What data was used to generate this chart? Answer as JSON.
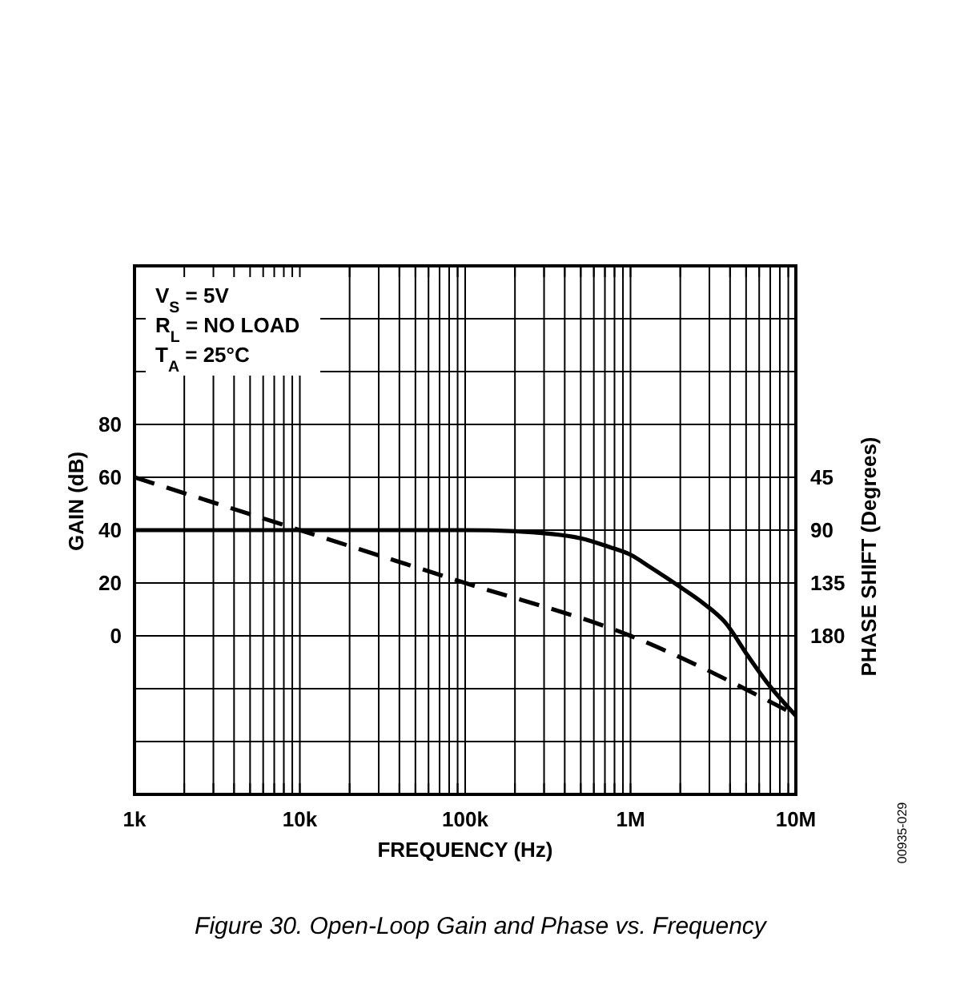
{
  "chart_data": {
    "type": "line",
    "title": "Figure 30. Open-Loop Gain and Phase vs. Frequency",
    "xlabel": "FREQUENCY (Hz)",
    "ylabel": "GAIN (dB)",
    "y2label": "PHASE SHIFT (Degrees)",
    "annotations": [
      "V$_{S}$ = 5V",
      "R$_{L}$ = NO LOAD",
      "T$_{A}$ = 25°C",
      "00935-029"
    ],
    "log": "x",
    "grid": true,
    "xlim": [
      1000,
      10000000
    ],
    "xticks": [
      {
        "value": 1000,
        "label": "1k"
      },
      {
        "value": 2000,
        "label": null
      },
      {
        "value": 3000,
        "label": null
      },
      {
        "value": 4000,
        "label": null
      },
      {
        "value": 5000,
        "label": null
      },
      {
        "value": 6000,
        "label": null
      },
      {
        "value": 7000,
        "label": null
      },
      {
        "value": 8000,
        "label": null
      },
      {
        "value": 9000,
        "label": null
      },
      {
        "value": 10000,
        "label": "10k"
      },
      {
        "value": 20000,
        "label": null
      },
      {
        "value": 30000,
        "label": null
      },
      {
        "value": 40000,
        "label": null
      },
      {
        "value": 50000,
        "label": null
      },
      {
        "value": 60000,
        "label": null
      },
      {
        "value": 70000,
        "label": null
      },
      {
        "value": 80000,
        "label": null
      },
      {
        "value": 90000,
        "label": null
      },
      {
        "value": 100000,
        "label": "100k"
      },
      {
        "value": 200000,
        "label": null
      },
      {
        "value": 300000,
        "label": null
      },
      {
        "value": 400000,
        "label": null
      },
      {
        "value": 500000,
        "label": null
      },
      {
        "value": 600000,
        "label": null
      },
      {
        "value": 700000,
        "label": null
      },
      {
        "value": 800000,
        "label": null
      },
      {
        "value": 900000,
        "label": null
      },
      {
        "value": 1000000,
        "label": "1M"
      },
      {
        "value": 2000000,
        "label": null
      },
      {
        "value": 3000000,
        "label": null
      },
      {
        "value": 4000000,
        "label": null
      },
      {
        "value": 5000000,
        "label": null
      },
      {
        "value": 6000000,
        "label": null
      },
      {
        "value": 7000000,
        "label": null
      },
      {
        "value": 8000000,
        "label": null
      },
      {
        "value": 9000000,
        "label": null
      },
      {
        "value": 10000000,
        "label": "10M"
      }
    ],
    "ylim": [
      -60,
      140
    ],
    "yticks": [
      {
        "value": -40,
        "label": null
      },
      {
        "value": -20,
        "label": null
      },
      0,
      20,
      40,
      60,
      80,
      {
        "value": 100,
        "label": null
      },
      {
        "value": 120,
        "label": null
      }
    ],
    "y2lim": [
      315,
      -135
    ],
    "y2ticks": [
      45,
      90,
      135,
      180
    ],
    "series": [
      {
        "color": "#000000",
        "line_style": "dashed",
        "x": [
          1000,
          10000,
          100000,
          1000000,
          10000000
        ],
        "values": [
          60,
          40,
          20,
          0,
          -30
        ]
      },
      {
        "color": "#000000",
        "line_style": "solid",
        "axis": "y2",
        "x": [
          1000,
          100000,
          200000,
          500000,
          730000,
          1000000,
          1330000,
          1930000,
          2800000,
          3760000,
          5070000,
          6800000,
          10000000
        ],
        "values": [
          90,
          90,
          91,
          97,
          104,
          111,
          122,
          137,
          153,
          169,
          196,
          221,
          248
        ]
      }
    ]
  }
}
